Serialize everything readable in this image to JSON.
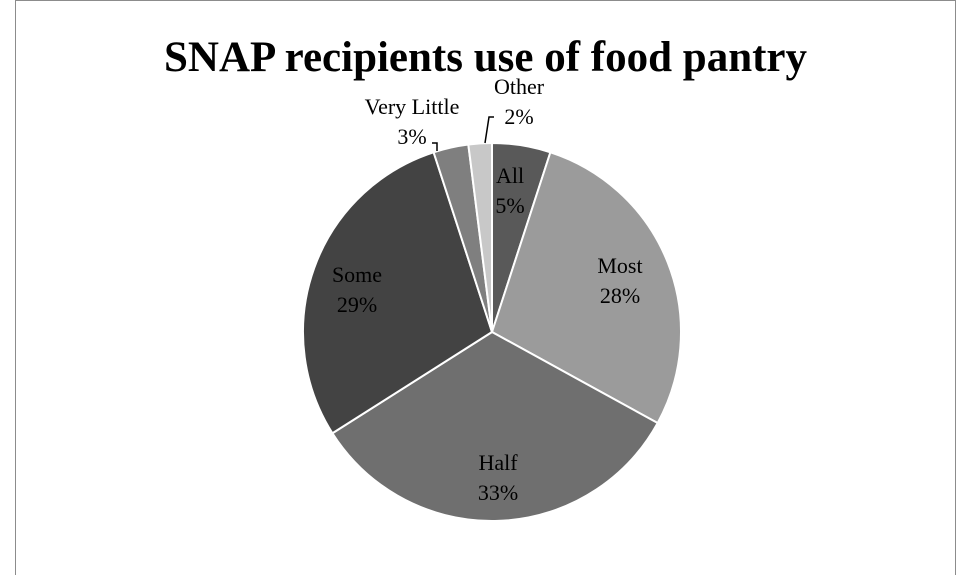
{
  "chart_data": {
    "type": "pie",
    "title": "SNAP recipients use of food pantry",
    "slices": [
      {
        "label": "All",
        "value": 5,
        "value_label": "5%",
        "color": "#595959"
      },
      {
        "label": "Most",
        "value": 28,
        "value_label": "28%",
        "color": "#9b9b9b"
      },
      {
        "label": "Half",
        "value": 33,
        "value_label": "33%",
        "color": "#6f6f6f"
      },
      {
        "label": "Some",
        "value": 29,
        "value_label": "29%",
        "color": "#434343"
      },
      {
        "label": "Very Little",
        "value": 3,
        "value_label": "3%",
        "color": "#7f7f7f"
      },
      {
        "label": "Other",
        "value": 2,
        "value_label": "2%",
        "color": "#c8c8c8"
      }
    ],
    "legend": "none",
    "start": "top",
    "direction": "clockwise"
  }
}
